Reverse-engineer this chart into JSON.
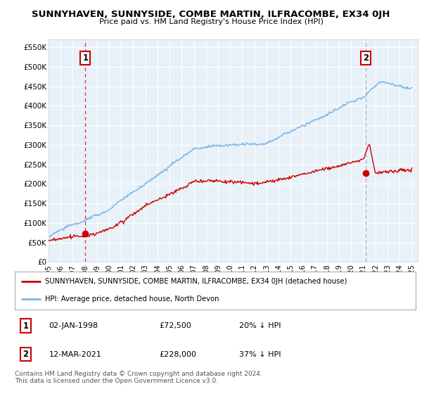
{
  "title": "SUNNYHAVEN, SUNNYSIDE, COMBE MARTIN, ILFRACOMBE, EX34 0JH",
  "subtitle": "Price paid vs. HM Land Registry's House Price Index (HPI)",
  "ylabel_ticks": [
    "£0",
    "£50K",
    "£100K",
    "£150K",
    "£200K",
    "£250K",
    "£300K",
    "£350K",
    "£400K",
    "£450K",
    "£500K",
    "£550K"
  ],
  "ytick_vals": [
    0,
    50000,
    100000,
    150000,
    200000,
    250000,
    300000,
    350000,
    400000,
    450000,
    500000,
    550000
  ],
  "ylim": [
    0,
    570000
  ],
  "xlim_start": 1995.0,
  "xlim_end": 2025.5,
  "hpi_color": "#7ab8e8",
  "price_color": "#cc0000",
  "vline1_color": "#cc0000",
  "vline2_color": "#aaaaaa",
  "marker1_date": 1998.04,
  "marker1_price": 72500,
  "marker1_label": "1",
  "marker2_date": 2021.19,
  "marker2_price": 228000,
  "marker2_label": "2",
  "legend_line1": "SUNNYHAVEN, SUNNYSIDE, COMBE MARTIN, ILFRACOMBE, EX34 0JH (detached house)",
  "legend_line2": "HPI: Average price, detached house, North Devon",
  "table_row1": [
    "1",
    "02-JAN-1998",
    "£72,500",
    "20% ↓ HPI"
  ],
  "table_row2": [
    "2",
    "12-MAR-2021",
    "£228,000",
    "37% ↓ HPI"
  ],
  "footnote": "Contains HM Land Registry data © Crown copyright and database right 2024.\nThis data is licensed under the Open Government Licence v3.0.",
  "background_color": "#ffffff",
  "chart_bg_color": "#e8f0f8",
  "grid_color": "#ffffff",
  "xticks": [
    1995,
    1996,
    1997,
    1998,
    1999,
    2000,
    2001,
    2002,
    2003,
    2004,
    2005,
    2006,
    2007,
    2008,
    2009,
    2010,
    2011,
    2012,
    2013,
    2014,
    2015,
    2016,
    2017,
    2018,
    2019,
    2020,
    2021,
    2022,
    2023,
    2024,
    2025
  ]
}
